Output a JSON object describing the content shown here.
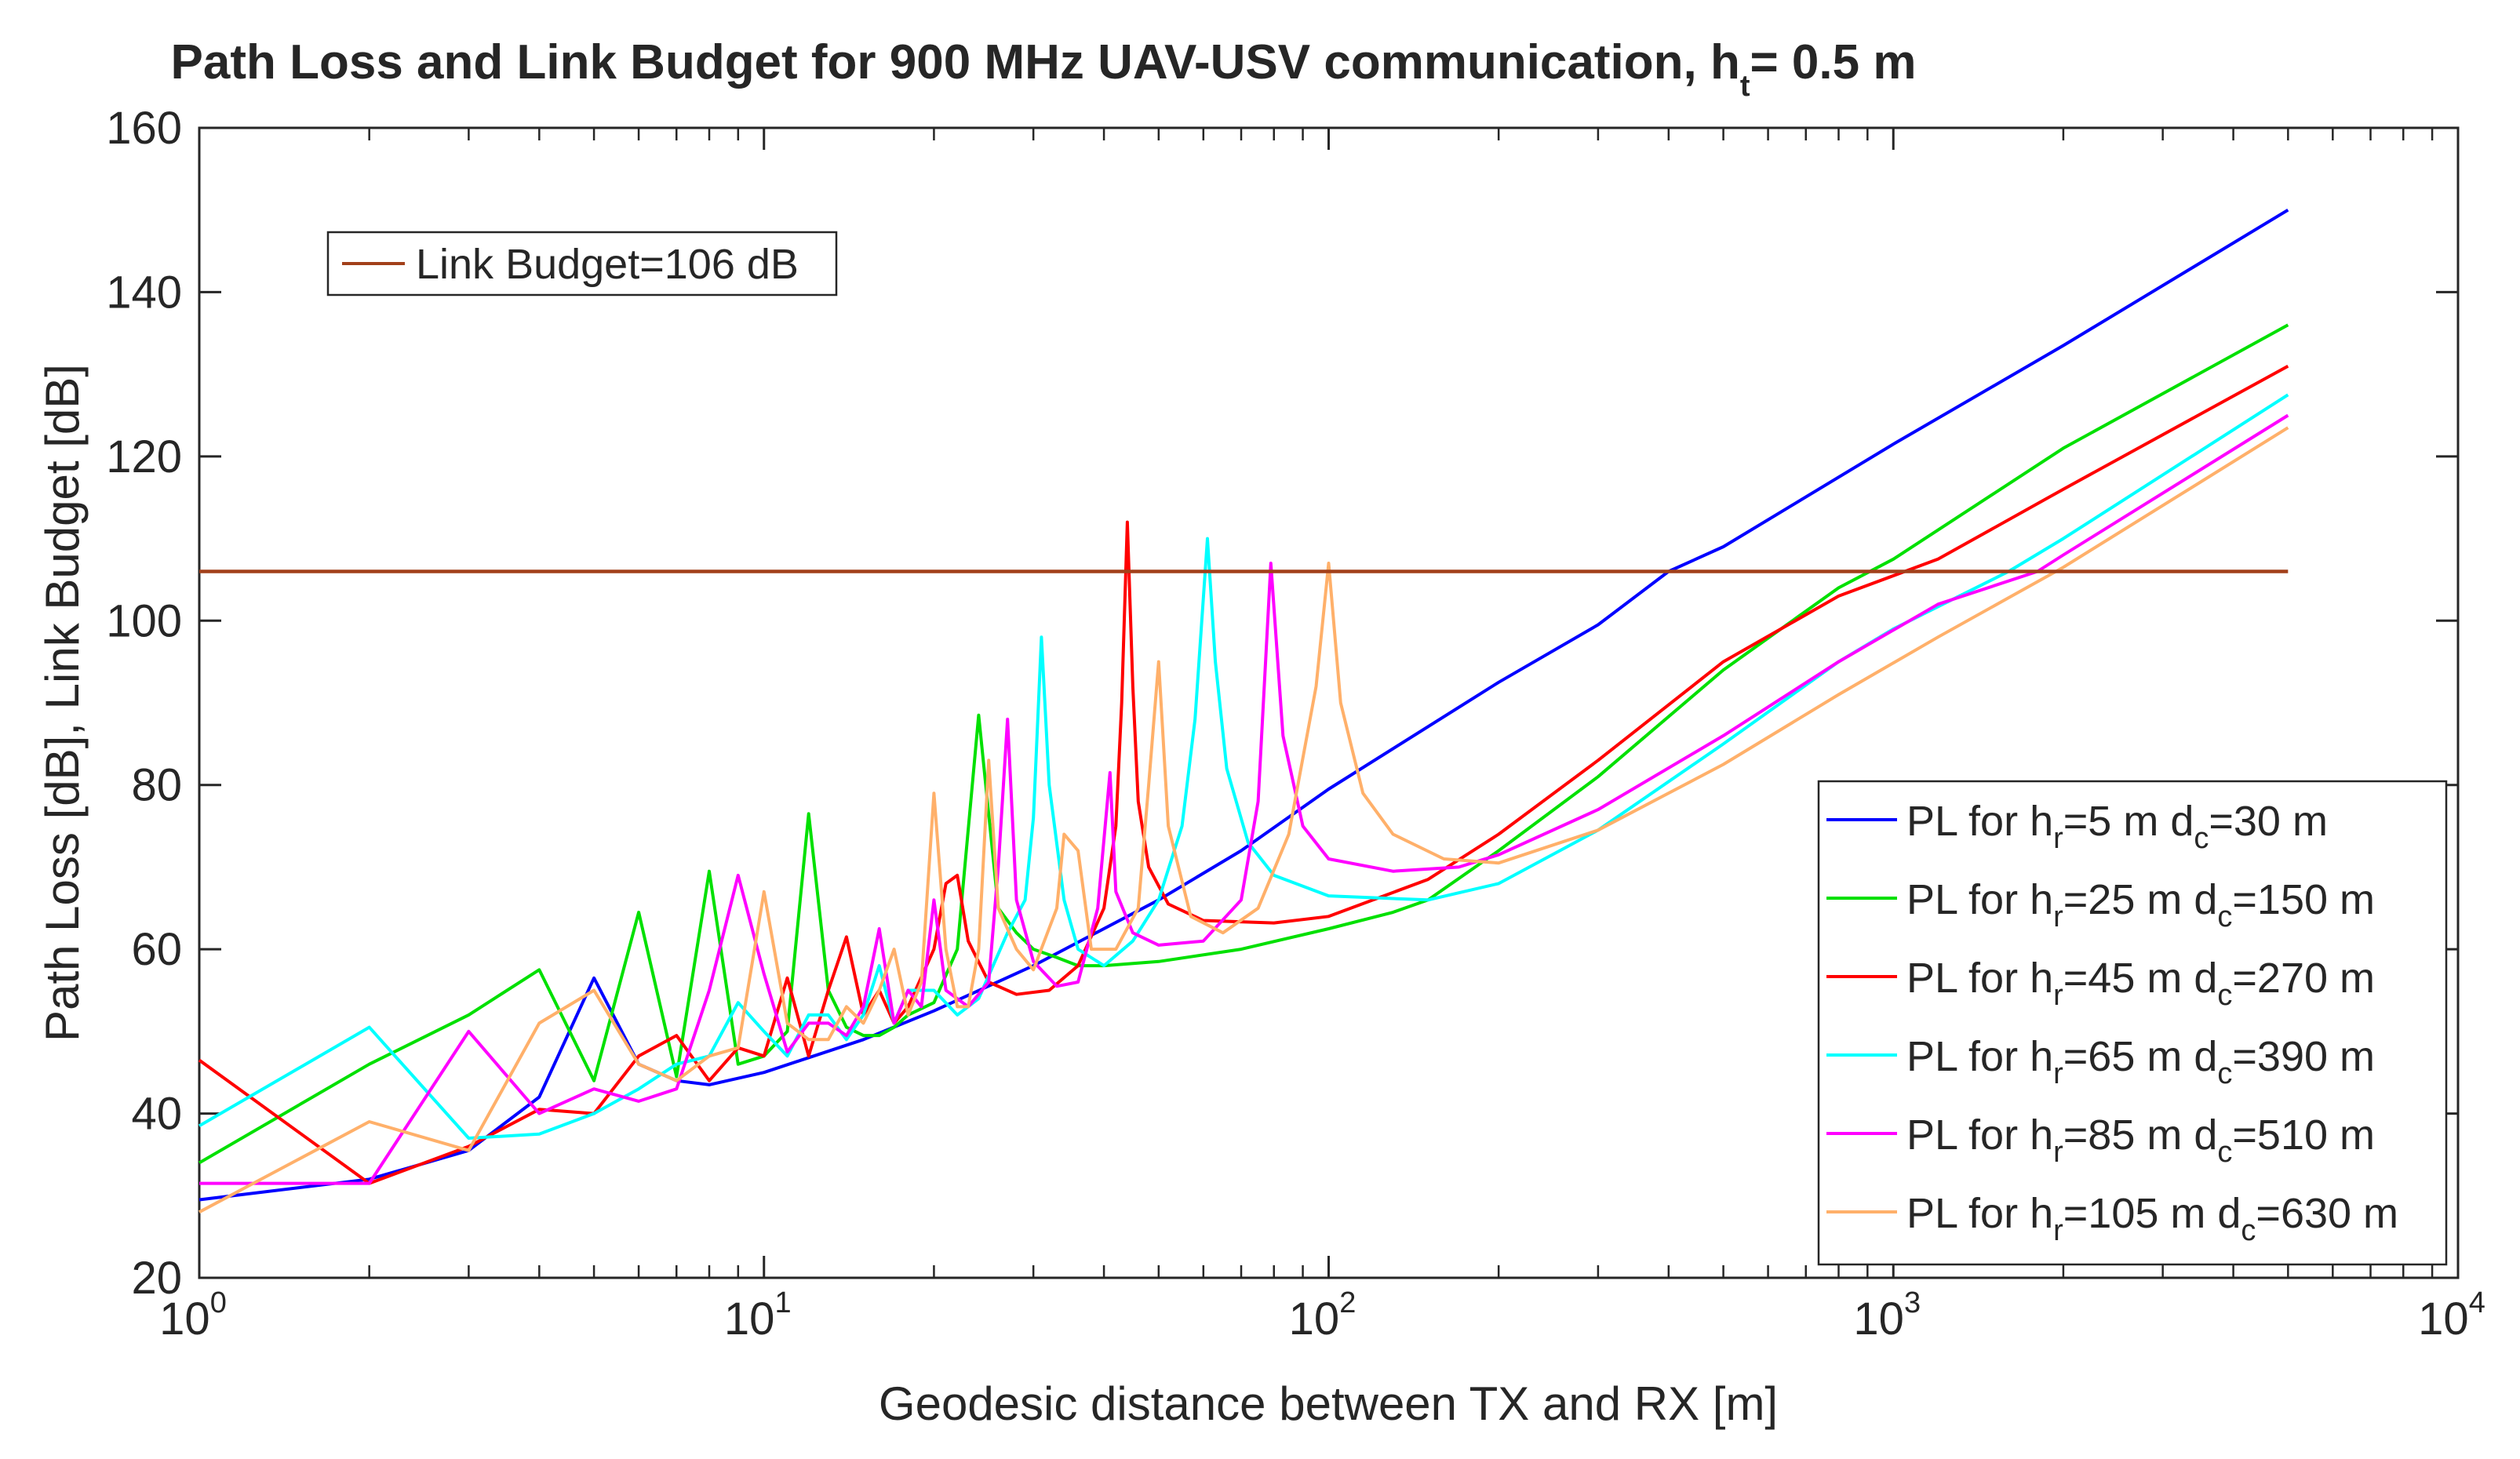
{
  "chart_data": {
    "type": "line",
    "title": {
      "main": "Path Loss and Link Budget for 900 MHz UAV-USV communication, h",
      "sub": "t",
      "suffix": "=  0.5 m"
    },
    "xlabel": "Geodesic distance between TX and RX [m]",
    "ylabel": "Path Loss [dB], Link Budget [dB]",
    "xscale": "log",
    "xlim": [
      1,
      10000
    ],
    "ylim": [
      20,
      160
    ],
    "x_ticks": [
      {
        "value": 1,
        "base": "10",
        "exp": "0"
      },
      {
        "value": 10,
        "base": "10",
        "exp": "1"
      },
      {
        "value": 100,
        "base": "10",
        "exp": "2"
      },
      {
        "value": 1000,
        "base": "10",
        "exp": "3"
      },
      {
        "value": 10000,
        "base": "10",
        "exp": "4"
      }
    ],
    "y_ticks": [
      "20",
      "40",
      "60",
      "80",
      "100",
      "120",
      "140",
      "160"
    ],
    "grid": false,
    "link_budget": {
      "label": "Link Budget=106 dB",
      "value": 106,
      "x_range": [
        1,
        5000
      ],
      "color": "#A2401A",
      "legend_position": "top-left"
    },
    "legend_position": "bottom-right",
    "series": [
      {
        "name": "PL for hr=5 m dc=30 m",
        "legend": {
          "pre": "PL for h",
          "sub1": "r",
          "mid": "=5 m d",
          "sub2": "c",
          "post": "=30 m"
        },
        "color": "#0000FF",
        "points": [
          [
            1,
            29.5
          ],
          [
            2,
            32
          ],
          [
            3,
            35.5
          ],
          [
            4,
            42
          ],
          [
            5,
            56.5
          ],
          [
            6,
            46
          ],
          [
            7,
            44
          ],
          [
            8,
            43.5
          ],
          [
            10,
            45
          ],
          [
            15,
            49
          ],
          [
            20,
            52.5
          ],
          [
            30,
            58
          ],
          [
            50,
            66
          ],
          [
            70,
            72
          ],
          [
            100,
            79.5
          ],
          [
            200,
            92.5
          ],
          [
            300,
            99.5
          ],
          [
            400,
            106
          ],
          [
            500,
            109
          ],
          [
            1000,
            121.5
          ],
          [
            2000,
            133.5
          ],
          [
            5000,
            150
          ]
        ]
      },
      {
        "name": "PL for hr=25 m dc=150 m",
        "legend": {
          "pre": "PL for h",
          "sub1": "r",
          "mid": "=25 m d",
          "sub2": "c",
          "post": "=150 m"
        },
        "color": "#00E000",
        "points": [
          [
            1,
            34
          ],
          [
            2,
            46
          ],
          [
            3,
            52
          ],
          [
            4,
            57.5
          ],
          [
            5,
            44
          ],
          [
            6,
            64.5
          ],
          [
            7,
            44.5
          ],
          [
            8,
            69.5
          ],
          [
            9,
            46
          ],
          [
            10,
            47
          ],
          [
            11,
            50
          ],
          [
            12,
            76.5
          ],
          [
            13,
            55
          ],
          [
            14,
            50.5
          ],
          [
            15,
            49.5
          ],
          [
            16,
            49.5
          ],
          [
            17,
            50.5
          ],
          [
            18,
            52
          ],
          [
            20,
            53.5
          ],
          [
            22,
            60
          ],
          [
            24,
            88.5
          ],
          [
            26,
            65
          ],
          [
            28,
            62
          ],
          [
            30,
            60
          ],
          [
            33,
            59
          ],
          [
            36,
            58
          ],
          [
            40,
            58
          ],
          [
            50,
            58.5
          ],
          [
            70,
            60
          ],
          [
            100,
            62.5
          ],
          [
            130,
            64.5
          ],
          [
            150,
            66
          ],
          [
            200,
            72
          ],
          [
            300,
            81
          ],
          [
            500,
            94
          ],
          [
            800,
            104
          ],
          [
            1000,
            107.5
          ],
          [
            2000,
            121
          ],
          [
            5000,
            136
          ]
        ]
      },
      {
        "name": "PL for hr=45 m dc=270 m",
        "legend": {
          "pre": "PL for h",
          "sub1": "r",
          "mid": "=45 m d",
          "sub2": "c",
          "post": "=270 m"
        },
        "color": "#FF0000",
        "points": [
          [
            1,
            46.5
          ],
          [
            2,
            31.5
          ],
          [
            3,
            36
          ],
          [
            4,
            40.5
          ],
          [
            5,
            40
          ],
          [
            6,
            47
          ],
          [
            7,
            49.5
          ],
          [
            8,
            44
          ],
          [
            9,
            48
          ],
          [
            10,
            47
          ],
          [
            11,
            56.5
          ],
          [
            12,
            47
          ],
          [
            13,
            55
          ],
          [
            14,
            61.5
          ],
          [
            15,
            52
          ],
          [
            16,
            55
          ],
          [
            17,
            51
          ],
          [
            18,
            53
          ],
          [
            20,
            60
          ],
          [
            21,
            68
          ],
          [
            22,
            69
          ],
          [
            23,
            61
          ],
          [
            25,
            56
          ],
          [
            28,
            54.5
          ],
          [
            32,
            55
          ],
          [
            36,
            58
          ],
          [
            40,
            65
          ],
          [
            42,
            75
          ],
          [
            43,
            90
          ],
          [
            44,
            112
          ],
          [
            45,
            92
          ],
          [
            46,
            78
          ],
          [
            48,
            70
          ],
          [
            52,
            65.5
          ],
          [
            60,
            63.5
          ],
          [
            80,
            63.2
          ],
          [
            100,
            64
          ],
          [
            150,
            68.5
          ],
          [
            200,
            74
          ],
          [
            300,
            83
          ],
          [
            500,
            95
          ],
          [
            800,
            103
          ],
          [
            1200,
            107.5
          ],
          [
            2000,
            116
          ],
          [
            5000,
            131
          ]
        ]
      },
      {
        "name": "PL for hr=65 m dc=390 m",
        "legend": {
          "pre": "PL for h",
          "sub1": "r",
          "mid": "=65 m d",
          "sub2": "c",
          "post": "=390 m"
        },
        "color": "#00FFFF",
        "points": [
          [
            1,
            38.5
          ],
          [
            2,
            50.5
          ],
          [
            3,
            37
          ],
          [
            4,
            37.5
          ],
          [
            5,
            40
          ],
          [
            6,
            43
          ],
          [
            7,
            46
          ],
          [
            8,
            47
          ],
          [
            9,
            53.5
          ],
          [
            10,
            50
          ],
          [
            11,
            47
          ],
          [
            12,
            52
          ],
          [
            13,
            52
          ],
          [
            14,
            49
          ],
          [
            15,
            52
          ],
          [
            16,
            58
          ],
          [
            17,
            51
          ],
          [
            18,
            55
          ],
          [
            20,
            55
          ],
          [
            22,
            52
          ],
          [
            24,
            54
          ],
          [
            27,
            62
          ],
          [
            29,
            66
          ],
          [
            30,
            76
          ],
          [
            31,
            98
          ],
          [
            32,
            80
          ],
          [
            34,
            66
          ],
          [
            36,
            60
          ],
          [
            40,
            58
          ],
          [
            45,
            61
          ],
          [
            50,
            66
          ],
          [
            55,
            75
          ],
          [
            58,
            88
          ],
          [
            61,
            110
          ],
          [
            63,
            95
          ],
          [
            66,
            82
          ],
          [
            72,
            73
          ],
          [
            80,
            69
          ],
          [
            100,
            66.5
          ],
          [
            150,
            66
          ],
          [
            200,
            68
          ],
          [
            300,
            74.5
          ],
          [
            500,
            85
          ],
          [
            800,
            95
          ],
          [
            1000,
            99
          ],
          [
            1600,
            106
          ],
          [
            2000,
            110
          ],
          [
            5000,
            127.5
          ]
        ]
      },
      {
        "name": "PL for hr=85 m dc=510 m",
        "legend": {
          "pre": "PL for h",
          "sub1": "r",
          "mid": "=85 m d",
          "sub2": "c",
          "post": "=510 m"
        },
        "color": "#FF00FF",
        "points": [
          [
            1,
            31.5
          ],
          [
            2,
            31.5
          ],
          [
            3,
            50
          ],
          [
            4,
            40
          ],
          [
            5,
            43
          ],
          [
            6,
            41.5
          ],
          [
            7,
            43
          ],
          [
            8,
            55
          ],
          [
            9,
            69
          ],
          [
            10,
            57
          ],
          [
            11,
            47.5
          ],
          [
            12,
            51
          ],
          [
            13,
            51
          ],
          [
            14,
            49.5
          ],
          [
            15,
            53
          ],
          [
            16,
            62.5
          ],
          [
            17,
            51
          ],
          [
            18,
            55
          ],
          [
            19,
            53
          ],
          [
            20,
            66
          ],
          [
            21,
            55
          ],
          [
            23,
            53
          ],
          [
            25,
            56
          ],
          [
            26,
            70
          ],
          [
            27,
            88
          ],
          [
            28,
            66
          ],
          [
            30,
            58.5
          ],
          [
            33,
            55.5
          ],
          [
            36,
            56
          ],
          [
            39,
            65
          ],
          [
            41,
            81.5
          ],
          [
            42,
            67
          ],
          [
            45,
            62
          ],
          [
            50,
            60.5
          ],
          [
            60,
            61
          ],
          [
            70,
            66
          ],
          [
            75,
            78
          ],
          [
            79,
            107
          ],
          [
            83,
            86
          ],
          [
            90,
            75
          ],
          [
            100,
            71
          ],
          [
            130,
            69.5
          ],
          [
            170,
            70
          ],
          [
            200,
            71.5
          ],
          [
            300,
            77
          ],
          [
            500,
            86
          ],
          [
            800,
            95
          ],
          [
            1200,
            102
          ],
          [
            1800,
            106
          ],
          [
            2000,
            108
          ],
          [
            5000,
            125
          ]
        ]
      },
      {
        "name": "PL for hr=105 m dc=630 m",
        "legend": {
          "pre": "PL for h",
          "sub1": "r",
          "mid": "=105 m d",
          "sub2": "c",
          "post": "=630 m"
        },
        "color": "#FFB06A",
        "points": [
          [
            1,
            28
          ],
          [
            2,
            39
          ],
          [
            3,
            35.5
          ],
          [
            4,
            51
          ],
          [
            5,
            55
          ],
          [
            6,
            46
          ],
          [
            7,
            44
          ],
          [
            8,
            47
          ],
          [
            9,
            48
          ],
          [
            10,
            67
          ],
          [
            11,
            51
          ],
          [
            12,
            49
          ],
          [
            13,
            49
          ],
          [
            14,
            53
          ],
          [
            15,
            51
          ],
          [
            16,
            55
          ],
          [
            17,
            60
          ],
          [
            18,
            52
          ],
          [
            19,
            56
          ],
          [
            20,
            79
          ],
          [
            21,
            60
          ],
          [
            22,
            53
          ],
          [
            23,
            53
          ],
          [
            24,
            60
          ],
          [
            25,
            83
          ],
          [
            26,
            65
          ],
          [
            28,
            60
          ],
          [
            30,
            57.5
          ],
          [
            33,
            65
          ],
          [
            34,
            74
          ],
          [
            36,
            72
          ],
          [
            38,
            60
          ],
          [
            42,
            60
          ],
          [
            46,
            65
          ],
          [
            48,
            80
          ],
          [
            50,
            95
          ],
          [
            52,
            75
          ],
          [
            57,
            64
          ],
          [
            65,
            62
          ],
          [
            75,
            65
          ],
          [
            85,
            74
          ],
          [
            95,
            92
          ],
          [
            100,
            107
          ],
          [
            105,
            90
          ],
          [
            115,
            79
          ],
          [
            130,
            74
          ],
          [
            160,
            71
          ],
          [
            200,
            70.5
          ],
          [
            300,
            74.5
          ],
          [
            500,
            82.5
          ],
          [
            800,
            91
          ],
          [
            1200,
            98
          ],
          [
            2000,
            106.5
          ],
          [
            5000,
            123.5
          ]
        ]
      }
    ]
  }
}
